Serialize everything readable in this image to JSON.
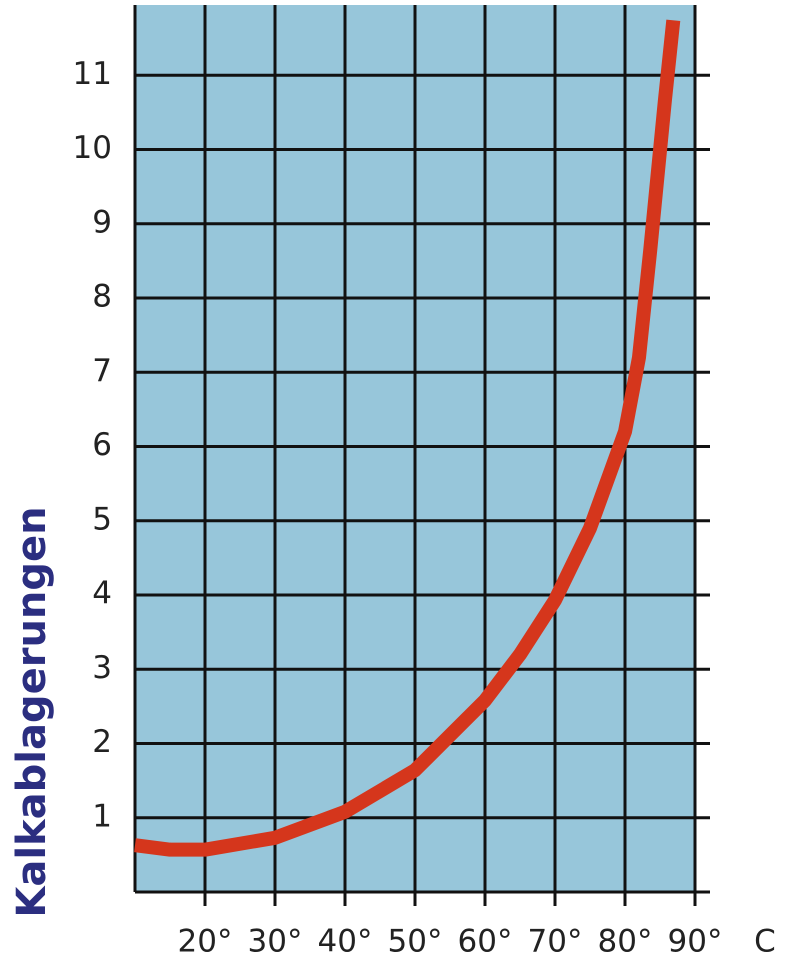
{
  "chart_data": {
    "type": "line",
    "y_label": "Kalkablagerungen",
    "x_unit": "C",
    "xlim": [
      10,
      90
    ],
    "ylim": [
      0,
      12
    ],
    "xticks": [
      {
        "value": 20,
        "label": "20°"
      },
      {
        "value": 30,
        "label": "30°"
      },
      {
        "value": 40,
        "label": "40°"
      },
      {
        "value": 50,
        "label": "50°"
      },
      {
        "value": 60,
        "label": "60°"
      },
      {
        "value": 70,
        "label": "70°"
      },
      {
        "value": 80,
        "label": "80°"
      },
      {
        "value": 90,
        "label": "90°"
      }
    ],
    "yticks": [
      1,
      2,
      3,
      4,
      5,
      6,
      7,
      8,
      9,
      10,
      11
    ],
    "grid": true,
    "background": "#97c6da",
    "series": [
      {
        "color": "#d5361c",
        "x": [
          10,
          15,
          20,
          30,
          40,
          50,
          60,
          65,
          70,
          75,
          80,
          82,
          83.6,
          85.7,
          86.9
        ],
        "values": [
          0.63,
          0.57,
          0.57,
          0.73,
          1.08,
          1.64,
          2.58,
          3.2,
          3.93,
          4.9,
          6.2,
          7.2,
          8.64,
          10.66,
          11.74
        ]
      }
    ]
  }
}
